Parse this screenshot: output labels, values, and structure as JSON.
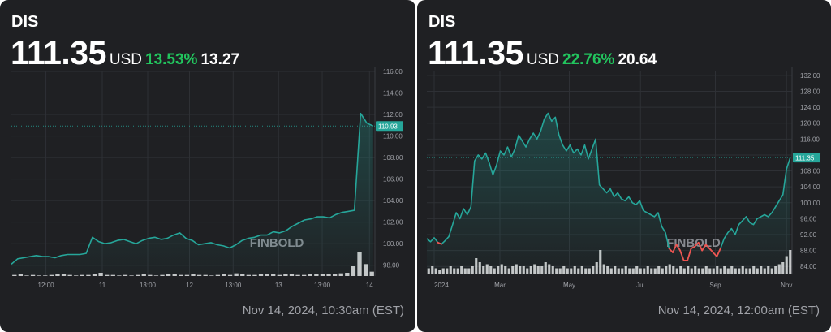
{
  "colors": {
    "background": "#1f2023",
    "line_up": "#26a69a",
    "line_down": "#ef5350",
    "percent_up": "#22c55e",
    "grid": "#2e3035",
    "axis_text": "#a0a2a8",
    "volume": "#e6e6e6"
  },
  "watermark": "FINBOLD",
  "cards": [
    {
      "ticker": "DIS",
      "price": "111.35",
      "currency": "USD",
      "change_percent": "13.53%",
      "change_value": "13.27",
      "timestamp": "Nov 14, 2024, 10:30am (EST)"
    },
    {
      "ticker": "DIS",
      "price": "111.35",
      "currency": "USD",
      "change_percent": "22.76%",
      "change_value": "20.64",
      "timestamp": "Nov 14, 2024, 12:00am (EST)"
    }
  ],
  "chart_data": [
    {
      "type": "area",
      "title": "",
      "ylim": [
        97,
        116
      ],
      "y_ticks": [
        "98.00",
        "100.00",
        "102.00",
        "104.00",
        "106.00",
        "108.00",
        "110.00",
        "112.00",
        "114.00",
        "116.00"
      ],
      "x_labels": [
        "12:00",
        "11",
        "13:00",
        "12",
        "13:00",
        "13",
        "13:00",
        "14"
      ],
      "last_value_label": "110.93",
      "last_value": 110.93,
      "series": [
        {
          "values": [
            98.1,
            98.6,
            98.7,
            98.8,
            98.9,
            98.8,
            98.8,
            98.7,
            98.9,
            99.0,
            99.0,
            99.0,
            99.1,
            100.6,
            100.2,
            100.0,
            100.1,
            100.3,
            100.4,
            100.2,
            100.0,
            100.3,
            100.5,
            100.6,
            100.4,
            100.5,
            100.8,
            101.0,
            100.5,
            100.3,
            99.9,
            100.0,
            100.1,
            99.9,
            99.8,
            99.6,
            99.9,
            100.3,
            100.5,
            100.6,
            100.8,
            100.8,
            101.1,
            101.0,
            101.2,
            101.6,
            101.9,
            102.2,
            102.3,
            102.5,
            102.5,
            102.4,
            102.7,
            102.9,
            103.0,
            103.1,
            112.1,
            111.2,
            110.93
          ]
        }
      ],
      "volume": [
        2,
        3,
        1,
        2,
        1,
        1,
        2,
        4,
        3,
        2,
        1,
        2,
        2,
        3,
        6,
        2,
        2,
        1,
        2,
        1,
        2,
        3,
        2,
        1,
        2,
        3,
        3,
        2,
        2,
        3,
        2,
        2,
        1,
        2,
        3,
        2,
        5,
        3,
        2,
        2,
        3,
        4,
        3,
        2,
        3,
        3,
        2,
        2,
        3,
        4,
        3,
        3,
        4,
        5,
        6,
        18,
        45,
        22,
        8
      ]
    },
    {
      "type": "area",
      "title": "",
      "ylim": [
        82,
        133
      ],
      "y_ticks": [
        "84.00",
        "88.00",
        "92.00",
        "96.00",
        "100.00",
        "104.00",
        "108.00",
        "112.00",
        "116.00",
        "120.00",
        "124.00",
        "128.00",
        "132.00"
      ],
      "x_labels": [
        "2024",
        "Mar",
        "May",
        "Jul",
        "Sep",
        "Nov"
      ],
      "last_value_label": "111.35",
      "last_value": 111.35,
      "below_threshold": 90.5,
      "series": [
        {
          "values": [
            91.0,
            90.2,
            91.2,
            90.0,
            89.6,
            90.5,
            91.5,
            94.5,
            97.5,
            96.0,
            98.5,
            97.0,
            99.0,
            110.5,
            112.0,
            111.0,
            112.5,
            110.0,
            107.0,
            109.5,
            113.0,
            112.0,
            114.0,
            111.5,
            113.5,
            117.0,
            115.5,
            114.0,
            116.0,
            117.5,
            116.0,
            118.0,
            121.0,
            122.5,
            120.5,
            121.5,
            117.0,
            114.5,
            113.0,
            114.5,
            112.5,
            113.5,
            112.0,
            114.5,
            111.0,
            113.5,
            116.0,
            104.5,
            103.5,
            102.5,
            103.5,
            101.5,
            102.5,
            101.0,
            100.5,
            101.5,
            100.0,
            99.5,
            100.5,
            98.0,
            97.5,
            97.0,
            96.5,
            97.5,
            94.0,
            92.5,
            88.5,
            87.5,
            89.5,
            88.0,
            85.5,
            85.5,
            88.5,
            89.0,
            90.0,
            88.0,
            89.5,
            88.5,
            87.5,
            86.5,
            88.5,
            91.0,
            92.5,
            93.5,
            92.0,
            94.5,
            95.5,
            96.5,
            95.0,
            94.5,
            96.0,
            96.5,
            97.0,
            96.5,
            97.5,
            99.0,
            100.5,
            102.0,
            108.5,
            111.35
          ]
        }
      ],
      "volume": [
        3,
        4,
        3,
        2,
        3,
        3,
        4,
        3,
        3,
        4,
        3,
        3,
        4,
        8,
        6,
        4,
        5,
        4,
        3,
        4,
        5,
        4,
        3,
        4,
        5,
        4,
        4,
        3,
        4,
        5,
        4,
        4,
        6,
        5,
        4,
        3,
        3,
        4,
        3,
        3,
        4,
        3,
        4,
        3,
        3,
        4,
        6,
        12,
        5,
        4,
        3,
        4,
        3,
        3,
        4,
        3,
        3,
        4,
        3,
        3,
        4,
        3,
        3,
        4,
        3,
        4,
        5,
        4,
        3,
        4,
        3,
        4,
        3,
        4,
        3,
        3,
        4,
        3,
        3,
        4,
        3,
        4,
        3,
        4,
        3,
        3,
        4,
        3,
        3,
        4,
        3,
        4,
        3,
        4,
        3,
        4,
        5,
        6,
        9,
        12
      ]
    }
  ]
}
